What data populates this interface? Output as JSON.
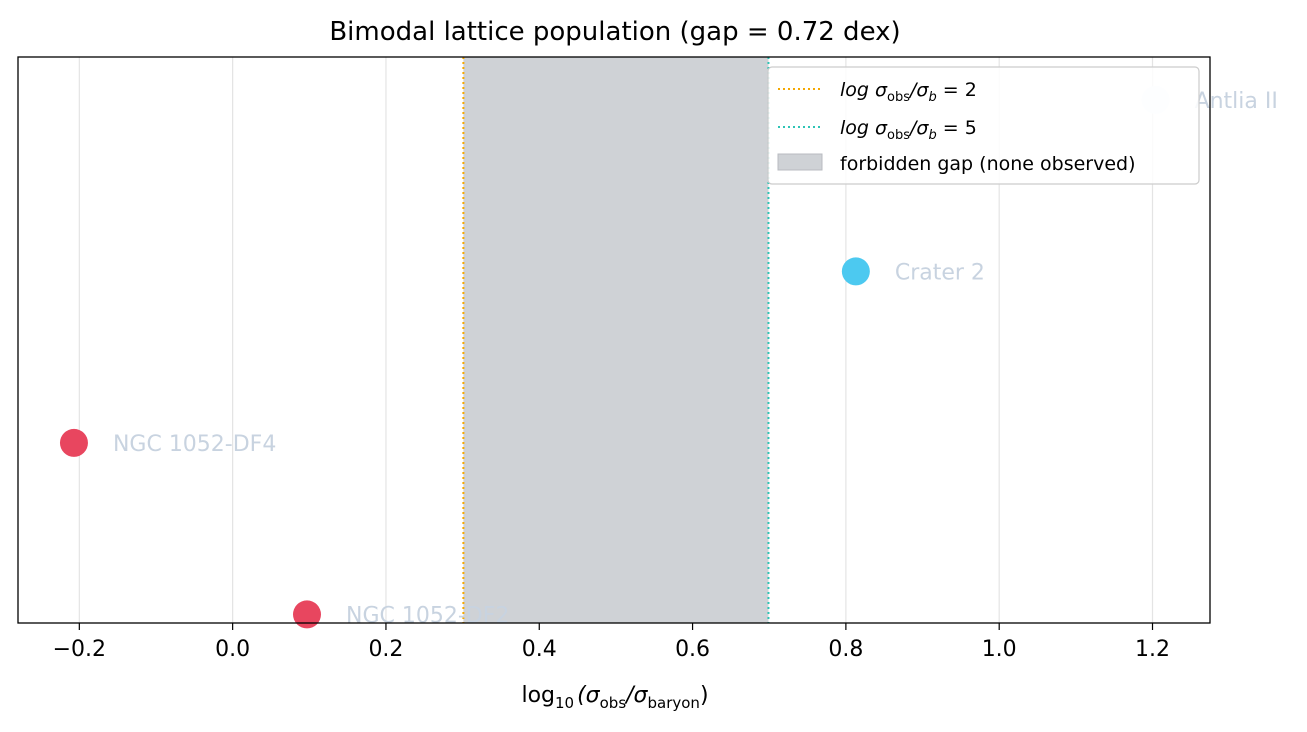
{
  "chart_data": {
    "type": "scatter",
    "title": "Bimodal lattice population (gap = 0.72 dex)",
    "xlabel": {
      "main": "log",
      "sub": "10",
      "expr": "(σ",
      "sub2": "obs",
      "mid": "/σ",
      "sub3": "baryon",
      "end": ")"
    },
    "xlim": [
      -0.28,
      1.275
    ],
    "ylim": [
      -0.05,
      3.25
    ],
    "xticks": [
      -0.2,
      0.0,
      0.2,
      0.4,
      0.6,
      0.8,
      1.0,
      1.2
    ],
    "xtick_labels": [
      "−0.2",
      "0.0",
      "0.2",
      "0.4",
      "0.6",
      "0.8",
      "1.0",
      "1.2"
    ],
    "grid": "vertical",
    "points": [
      {
        "name": "NGC 1052-DF2",
        "x": 0.097,
        "y": 0,
        "color": "#e8465f"
      },
      {
        "name": "NGC 1052-DF4",
        "x": -0.207,
        "y": 1,
        "color": "#e8465f"
      },
      {
        "name": "Crater 2",
        "x": 0.813,
        "y": 2,
        "color": "#4cc9f0"
      },
      {
        "name": "Antlia II",
        "x": 1.204,
        "y": 3,
        "color": "#eef7fb"
      }
    ],
    "reference_lines": [
      {
        "x": 0.301,
        "color": "#f5a800",
        "style": "dotted",
        "label": {
          "pre": "log σ",
          "s1": "obs",
          "mid": "/σ",
          "s2": "b",
          "post": " = 2"
        }
      },
      {
        "x": 0.699,
        "color": "#2ec4b6",
        "style": "dotted",
        "label": {
          "pre": "log σ",
          "s1": "obs",
          "mid": "/σ",
          "s2": "b",
          "post": " = 5"
        }
      }
    ],
    "shaded_region": {
      "x0": 0.301,
      "x1": 0.699,
      "color": "#cfd2d6",
      "label": "forbidden gap (none observed)"
    },
    "legend_placement": "top-right"
  }
}
